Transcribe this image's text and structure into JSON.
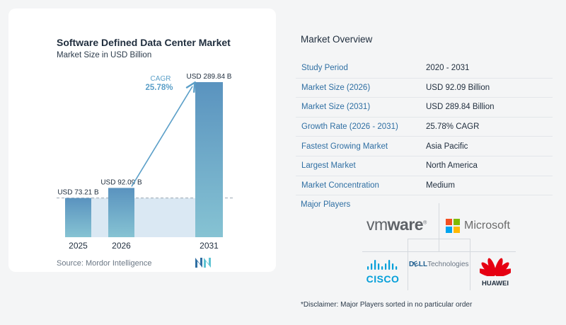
{
  "chart": {
    "title": "Software Defined Data Center Market",
    "subtitle": "Market Size in USD Billion",
    "source": "Source:  Mordor Intelligence",
    "cagr_label": "CAGR",
    "cagr_value": "25.78%"
  },
  "chart_data": {
    "type": "bar",
    "title": "Software Defined Data Center Market",
    "subtitle": "Market Size in USD Billion",
    "categories": [
      "2025",
      "2026",
      "2031"
    ],
    "values": [
      73.21,
      92.09,
      289.84
    ],
    "data_labels": [
      "USD 73.21 B",
      "USD 92.09 B",
      "USD 289.84 B"
    ],
    "ylim": [
      0,
      289.84
    ],
    "grid": false,
    "annotation": {
      "label": "CAGR",
      "value": "25.78%"
    }
  },
  "overview": {
    "title": "Market Overview",
    "rows": [
      {
        "key": "Study Period",
        "value": "2020 - 2031"
      },
      {
        "key": "Market Size (2026)",
        "value": "USD 92.09 Billion"
      },
      {
        "key": "Market Size (2031)",
        "value": "USD 289.84 Billion"
      },
      {
        "key": "Growth Rate (2026 - 2031)",
        "value": "25.78% CAGR"
      },
      {
        "key": "Fastest Growing Market",
        "value": "Asia Pacific"
      },
      {
        "key": "Largest Market",
        "value": "North America"
      },
      {
        "key": "Market Concentration",
        "value": "Medium"
      }
    ]
  },
  "players": {
    "title": "Major Players",
    "vmware": {
      "a": "vm",
      "b": "ware",
      "reg": "®"
    },
    "microsoft": "Microsoft",
    "cisco": "CISCO",
    "dell": {
      "a": "D",
      "b": "LL",
      "c": "Technologies"
    },
    "huawei": "HUAWEI"
  },
  "disclaimer": "*Disclaimer: Major Players sorted in no particular order",
  "colors": {
    "bar_top": "#5a93bf",
    "bar_bottom": "#86c3d3",
    "arrow": "#5b9fc8",
    "key_text": "#2f6fa3",
    "microsoft": [
      "#f25022",
      "#7fba00",
      "#00a4ef",
      "#ffb900"
    ],
    "cisco": "#049fd9",
    "huawei": "#e60012"
  }
}
